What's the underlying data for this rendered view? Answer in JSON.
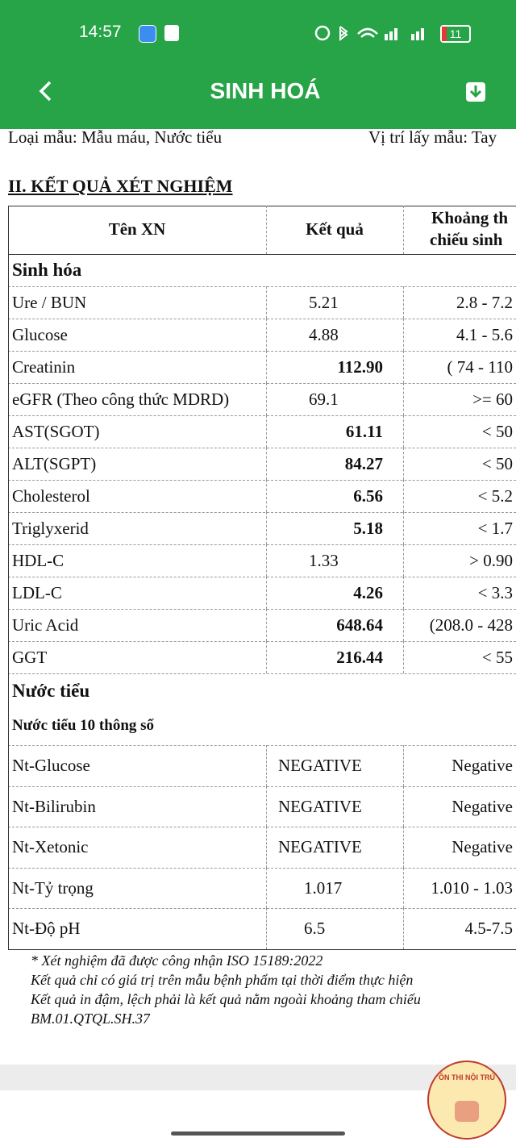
{
  "status_bar": {
    "time": "14:57",
    "battery": "11"
  },
  "header": {
    "title": "SINH HOÁ"
  },
  "info": {
    "sample_type": "Loại mẫu: Mẫu máu, Nước tiểu",
    "location": "Vị trí lấy mẫu: Tay"
  },
  "section_title": "II. KẾT QUẢ XÉT NGHIỆM",
  "table": {
    "headers": [
      "Tên XN",
      "Kết quả",
      [
        "Khoảng th",
        "chiếu sinh"
      ]
    ],
    "groups": [
      {
        "name": "Sinh hóa",
        "rows": [
          {
            "name": "Ure / BUN",
            "result": "5.21",
            "reference": "2.8  - 7.2",
            "bold": false
          },
          {
            "name": "Glucose",
            "result": "4.88",
            "reference": "4.1 - 5.6",
            "bold": false
          },
          {
            "name": "Creatinin",
            "result": "112.90",
            "reference": "( 74 - 110",
            "bold": true
          },
          {
            "name": "eGFR (Theo công thức MDRD)",
            "result": "69.1",
            "reference": ">= 60",
            "bold": false
          },
          {
            "name": "AST(SGOT)",
            "result": "61.11",
            "reference": "< 50",
            "bold": true
          },
          {
            "name": "ALT(SGPT)",
            "result": "84.27",
            "reference": "< 50",
            "bold": true
          },
          {
            "name": "Cholesterol",
            "result": "6.56",
            "reference": "< 5.2",
            "bold": true
          },
          {
            "name": "Triglyxerid",
            "result": "5.18",
            "reference": "< 1.7",
            "bold": true
          },
          {
            "name": "HDL-C",
            "result": "1.33",
            "reference": "> 0.90",
            "bold": false
          },
          {
            "name": "LDL-C",
            "result": "4.26",
            "reference": "< 3.3",
            "bold": true
          },
          {
            "name": "Uric Acid",
            "result": "648.64",
            "reference": "(208.0 - 428",
            "bold": true
          },
          {
            "name": "GGT",
            "result": "216.44",
            "reference": "< 55",
            "bold": true
          }
        ]
      },
      {
        "name": "Nước tiểu",
        "subgroup": "Nước tiểu 10 thông số",
        "rows": [
          {
            "name": "Nt-Glucose",
            "result": "NEGATIVE",
            "reference": "Negative",
            "bold": false
          },
          {
            "name": "Nt-Bilirubin",
            "result": "NEGATIVE",
            "reference": "Negative",
            "bold": false
          },
          {
            "name": "Nt-Xetonic",
            "result": "NEGATIVE",
            "reference": "Negative",
            "bold": false
          },
          {
            "name": "Nt-Tỷ trọng",
            "result": "1.017",
            "reference": "1.010 - 1.03",
            "bold": false
          },
          {
            "name": "Nt-Độ pH",
            "result": "6.5",
            "reference": "4.5-7.5",
            "bold": false
          }
        ]
      }
    ]
  },
  "notes": [
    "*  Xét nghiệm đã được công nhận ISO 15189:2022",
    "Kết quả chỉ có giá trị trên mẫu bệnh phẩm tại thời điểm thực hiện",
    "Kết quả in đậm, lệch phải là kết quả nằm ngoài khoảng tham chiếu",
    "BM.01.QTQL.SH.37"
  ],
  "logo": {
    "text": "ÔN THI NỘI TRÚ"
  }
}
